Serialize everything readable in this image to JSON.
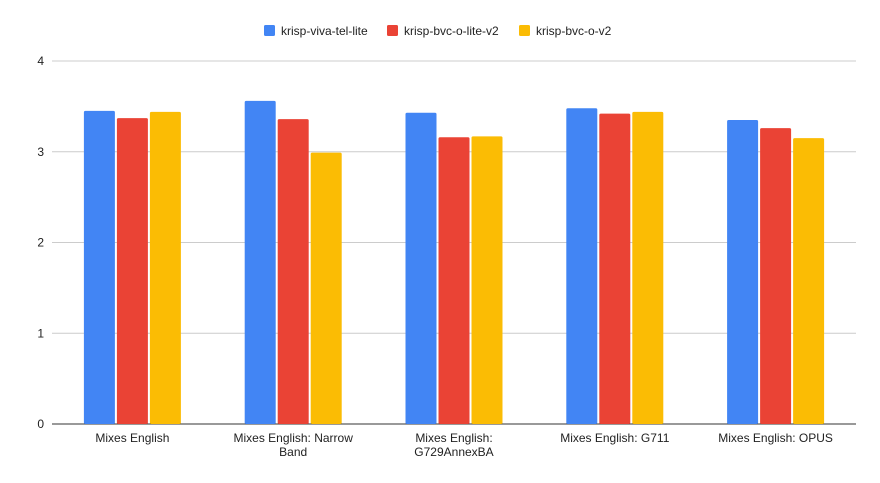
{
  "chart_data": {
    "type": "bar",
    "title": "",
    "xlabel": "",
    "ylabel": "",
    "ylim": [
      0,
      4
    ],
    "yticks": [
      0,
      1,
      2,
      3,
      4
    ],
    "grid": true,
    "legend_position": "top-center",
    "categories": [
      [
        "Mixes English"
      ],
      [
        "Mixes English: Narrow",
        "Band"
      ],
      [
        "Mixes English:",
        "G729AnnexBA"
      ],
      [
        "Mixes English: G711"
      ],
      [
        "Mixes English: OPUS"
      ]
    ],
    "series": [
      {
        "name": "krisp-viva-tel-lite",
        "color": "#4285f4",
        "values": [
          3.45,
          3.56,
          3.43,
          3.48,
          3.35
        ]
      },
      {
        "name": "krisp-bvc-o-lite-v2",
        "color": "#ea4335",
        "values": [
          3.37,
          3.36,
          3.16,
          3.42,
          3.26
        ]
      },
      {
        "name": "krisp-bvc-o-v2",
        "color": "#fbbc04",
        "values": [
          3.44,
          2.99,
          3.17,
          3.44,
          3.15
        ]
      }
    ]
  }
}
